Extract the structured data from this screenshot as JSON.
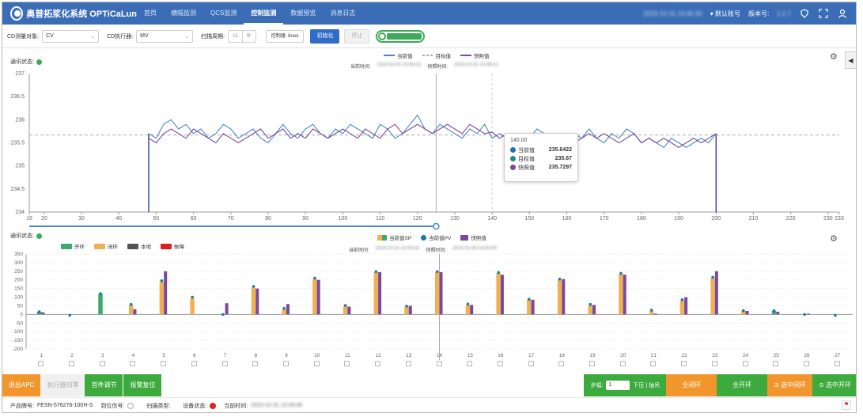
{
  "app": {
    "logo_text": "奥普拓浆化系统 OPTiCaLun",
    "nav": [
      {
        "label": "首页"
      },
      {
        "label": "横幅监测"
      },
      {
        "label": "QCS监测"
      },
      {
        "label": "控制监测",
        "active": true
      },
      {
        "label": "数据预览"
      },
      {
        "label": "消息日志"
      }
    ],
    "datetime": "2023-10-31 10:45:30",
    "user": "默认账号",
    "version_label": "版本号:",
    "version": "1.2.7"
  },
  "controls": {
    "cd_object_label": "CD测量对象:",
    "cd_object_value": "CV",
    "cd_actuator_label": "CD执行器:",
    "cd_actuator_value": "MV",
    "scan_period_label": "扫描周期:",
    "scan_options": [
      "15",
      "秒"
    ],
    "controller_label": "控制器: 8ooo",
    "init_button": "初始化",
    "stop_button": "停止"
  },
  "chart_top": {
    "status_label": "通讯状态:",
    "status_color": "#3caa57",
    "legend": [
      {
        "name": "当前值",
        "color": "#4a86c8",
        "style": "solid"
      },
      {
        "name": "目标值",
        "color": "#aaaaaa",
        "style": "dashed"
      },
      {
        "name": "快照值",
        "color": "#7a4a9a",
        "style": "solid"
      }
    ],
    "current_time_label": "当前时间:",
    "current_time": "2023-10-31 10:45:31",
    "snapshot_time_label": "快照时间:",
    "snapshot_time": "2023-10-31 10:38:22",
    "tooltip": {
      "title": "140.00",
      "rows": [
        {
          "name": "当前值",
          "value": "235.6422",
          "color": "#2e6bbf"
        },
        {
          "name": "目标值",
          "value": "235.67",
          "color": "#1e8c84"
        },
        {
          "name": "快照值",
          "value": "235.7297",
          "color": "#7a4a9a"
        }
      ]
    }
  },
  "chart_bottom": {
    "status_label": "通讯状态:",
    "status_color": "#3caa57",
    "legend_left": [
      {
        "name": "开环",
        "color": "#3caa6a"
      },
      {
        "name": "闭环",
        "color": "#f0b055"
      },
      {
        "name": "本地",
        "color": "#555555"
      },
      {
        "name": "故障",
        "color": "#e02020"
      }
    ],
    "legend_right": [
      {
        "name": "当前值SP",
        "color": "#f0b055"
      },
      {
        "name": "当前值PV",
        "color": "#1a7aa0"
      },
      {
        "name": "快照值",
        "color": "#7a4a9a"
      }
    ],
    "current_time_label": "当前时间:",
    "current_time": "2023-10-31 10:45:31",
    "snapshot_time_label": "快照时间:",
    "snapshot_time": "2023-10-30 15:00:49"
  },
  "chart_data": [
    {
      "type": "line",
      "ylim": [
        234,
        237
      ],
      "yticks": [
        234,
        234.5,
        235,
        235.5,
        236,
        236.5,
        237
      ],
      "xlim": [
        16,
        233
      ],
      "xticks": [
        16,
        20,
        30,
        40,
        50,
        60,
        70,
        80,
        90,
        100,
        110,
        120,
        130,
        140,
        150,
        160,
        170,
        180,
        190,
        200,
        210,
        220,
        230,
        233
      ],
      "target": 235.67,
      "edges": [
        48,
        200
      ],
      "cursor_x": 125,
      "snapshot_x": 140,
      "series": [
        {
          "name": "当前值",
          "x": [
            48,
            50,
            52,
            54,
            56,
            58,
            60,
            62,
            64,
            66,
            68,
            70,
            72,
            74,
            76,
            78,
            80,
            82,
            84,
            86,
            88,
            90,
            92,
            94,
            96,
            98,
            100,
            102,
            104,
            106,
            108,
            110,
            112,
            114,
            116,
            118,
            120,
            122,
            124,
            126,
            128,
            130,
            132,
            134,
            136,
            138,
            140,
            142,
            144,
            146,
            148,
            150,
            152,
            154,
            156,
            158,
            160,
            162,
            164,
            166,
            168,
            170,
            172,
            174,
            176,
            178,
            180,
            182,
            184,
            186,
            188,
            190,
            192,
            194,
            196,
            198,
            200
          ],
          "values": [
            235.7,
            235.6,
            235.9,
            236.0,
            235.8,
            235.9,
            235.7,
            235.8,
            235.6,
            235.7,
            235.9,
            235.8,
            235.6,
            235.7,
            235.8,
            235.6,
            235.5,
            235.7,
            235.9,
            235.7,
            235.6,
            235.8,
            235.9,
            235.7,
            235.6,
            235.8,
            235.7,
            235.9,
            235.8,
            235.7,
            235.6,
            235.9,
            235.8,
            235.6,
            235.7,
            235.9,
            236.1,
            235.8,
            235.7,
            235.9,
            235.8,
            235.7,
            235.6,
            235.8,
            235.7,
            235.9,
            235.6,
            235.7,
            235.6,
            235.5,
            235.7,
            235.6,
            235.8,
            235.7,
            235.6,
            235.7,
            235.6,
            235.7,
            235.6,
            235.8,
            235.6,
            235.5,
            235.7,
            235.6,
            235.8,
            235.7,
            235.5,
            235.6,
            235.5,
            235.4,
            235.6,
            235.5,
            235.4,
            235.5,
            235.6,
            235.5,
            235.7
          ]
        },
        {
          "name": "目标值",
          "x": [
            16,
            233
          ],
          "values": [
            235.67,
            235.67
          ]
        },
        {
          "name": "快照值",
          "x": [
            48,
            50,
            52,
            54,
            56,
            58,
            60,
            62,
            64,
            66,
            68,
            70,
            72,
            74,
            76,
            78,
            80,
            82,
            84,
            86,
            88,
            90,
            92,
            94,
            96,
            98,
            100,
            102,
            104,
            106,
            108,
            110,
            112,
            114,
            116,
            118,
            120,
            122,
            124,
            126,
            128,
            130,
            132,
            134,
            136,
            138,
            140,
            142,
            144,
            146,
            148,
            150,
            152,
            154,
            156,
            158,
            160,
            162,
            164,
            166,
            168,
            170,
            172,
            174,
            176,
            178,
            180,
            182,
            184,
            186,
            188,
            190,
            192,
            194,
            196,
            198,
            200
          ],
          "values": [
            235.6,
            235.5,
            235.7,
            235.8,
            235.7,
            235.6,
            235.8,
            235.7,
            235.6,
            235.5,
            235.7,
            235.6,
            235.5,
            235.6,
            235.7,
            235.8,
            235.6,
            235.7,
            235.8,
            235.6,
            235.7,
            235.6,
            235.8,
            235.7,
            235.6,
            235.7,
            235.8,
            235.7,
            235.6,
            235.8,
            235.7,
            235.6,
            235.8,
            235.9,
            235.7,
            235.8,
            235.9,
            235.8,
            235.7,
            235.8,
            235.9,
            235.8,
            235.7,
            235.9,
            235.8,
            235.7,
            235.73,
            235.6,
            235.7,
            235.6,
            235.7,
            235.6,
            235.7,
            235.6,
            235.7,
            235.6,
            235.7,
            235.5,
            235.6,
            235.7,
            235.6,
            235.7,
            235.6,
            235.5,
            235.6,
            235.7,
            235.5,
            235.6,
            235.5,
            235.6,
            235.5,
            235.4,
            235.5,
            235.6,
            235.5,
            235.6,
            235.7
          ]
        }
      ]
    },
    {
      "type": "bar",
      "ylim": [
        -200,
        350
      ],
      "yticks": [
        -200,
        -150,
        -100,
        -50,
        0,
        50,
        100,
        150,
        200,
        250,
        300,
        350
      ],
      "categories": [
        "1",
        "2",
        "3",
        "4",
        "5",
        "6",
        "7",
        "8",
        "9",
        "10",
        "11",
        "12",
        "13",
        "14",
        "15",
        "16",
        "17",
        "18",
        "19",
        "20",
        "21",
        "22",
        "23",
        "24",
        "25",
        "26",
        "27"
      ],
      "cursor_category": "14",
      "series": [
        {
          "name": "当前值SP",
          "values": [
            15,
            0,
            120,
            55,
            190,
            95,
            0,
            155,
            30,
            205,
            50,
            245,
            45,
            245,
            55,
            240,
            85,
            200,
            55,
            235,
            20,
            80,
            210,
            20,
            20,
            0,
            0
          ]
        },
        {
          "name": "当前值PV",
          "values": [
            15,
            -5,
            120,
            58,
            195,
            100,
            0,
            162,
            35,
            210,
            52,
            248,
            48,
            248,
            60,
            243,
            88,
            205,
            58,
            238,
            25,
            85,
            215,
            22,
            22,
            0,
            -5
          ]
        },
        {
          "name": "快照值",
          "values": [
            12,
            0,
            0,
            30,
            250,
            0,
            65,
            150,
            60,
            200,
            45,
            245,
            50,
            245,
            55,
            230,
            85,
            205,
            55,
            230,
            5,
            100,
            250,
            20,
            15,
            5,
            0
          ]
        }
      ],
      "mode_colors": [
        "#3caa6a",
        "#f0b055",
        "#3caa6a",
        "#f0b055",
        "#f0b055",
        "#f0b055",
        "#f0b055",
        "#f0b055",
        "#f0b055",
        "#f0b055",
        "#f0b055",
        "#f0b055",
        "#f0b055",
        "#f0b055",
        "#f0b055",
        "#f0b055",
        "#f0b055",
        "#f0b055",
        "#f0b055",
        "#f0b055",
        "#f0b055",
        "#f0b055",
        "#f0b055",
        "#f0b055",
        "#3caa6a",
        "#f0b055",
        "#f0b055"
      ]
    }
  ],
  "bottom_buttons": {
    "exit_apc": "退出APC",
    "actuator_zero": "执行器归零",
    "head_adjust": "首件调节",
    "alarm_reset": "报警复位",
    "step_label": "步幅:",
    "step_value": "1",
    "up_down_label": "下压 | 抽吊",
    "full_close": "全闭环",
    "full_open": "全开环",
    "select_close": "选中闭环",
    "select_open": "选中开环"
  },
  "status_bar": {
    "product_label": "产品牌号:",
    "product_value": "FESN-576276-100H-S",
    "position_label": "到位信号:",
    "scan_type_label": "扫描类型:",
    "device_status_label": "设备状态:",
    "current_time_label": "当前时间:",
    "current_time": "2023-10-31 10:39:46"
  }
}
